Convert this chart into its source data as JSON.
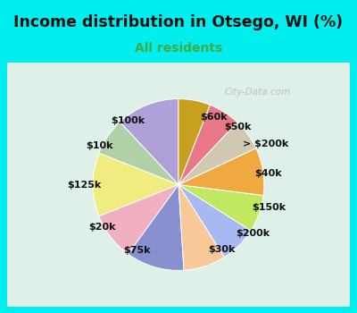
{
  "title": "Income distribution in Otsego, WI (%)",
  "subtitle": "All residents",
  "title_color": "#111111",
  "subtitle_color": "#44aa44",
  "background_color": "#00eeee",
  "chart_bg_color_top": "#d8f0e8",
  "chart_bg_color_bot": "#c8e8d8",
  "watermark": "City-Data.com",
  "labels": [
    "$100k",
    "$10k",
    "$125k",
    "$20k",
    "$75k",
    "$30k",
    "$200k",
    "$150k",
    "$40k",
    "> $200k",
    "$50k",
    "$60k"
  ],
  "values": [
    12,
    7,
    12,
    9,
    11,
    8,
    7,
    7,
    9,
    6,
    6,
    6
  ],
  "colors": [
    "#b0a0d8",
    "#b0d0a8",
    "#f0ec80",
    "#f0b0c0",
    "#8890d0",
    "#f8c898",
    "#a8b8f0",
    "#c0e860",
    "#f0a840",
    "#d0c8b0",
    "#e87888",
    "#c8a020"
  ],
  "label_fontsize": 8,
  "title_fontsize": 12.5,
  "subtitle_fontsize": 10
}
